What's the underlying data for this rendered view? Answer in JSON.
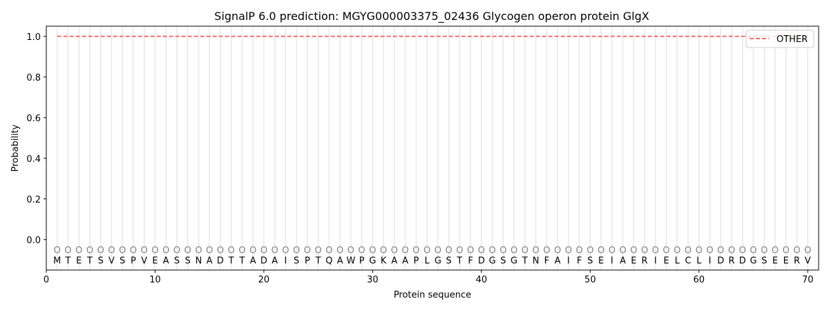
{
  "chart_data": {
    "type": "line",
    "title": "SignalP 6.0 prediction: MGYG000003375_02436 Glycogen operon protein GlgX",
    "xlabel": "Protein sequence",
    "ylabel": "Probability",
    "xlim": [
      0,
      71
    ],
    "ylim": [
      -0.15,
      1.05
    ],
    "xticks": [
      0,
      10,
      20,
      30,
      40,
      50,
      60,
      70
    ],
    "yticks": [
      0.0,
      0.2,
      0.4,
      0.6,
      0.8,
      1.0
    ],
    "ytick_labels": [
      "0.0",
      "0.2",
      "0.4",
      "0.6",
      "0.8",
      "1.0"
    ],
    "grid": "vertical lines at each residue",
    "legend_placement": "top-right",
    "series": [
      {
        "name": "OTHER",
        "color": "#f07070",
        "style": "dashed",
        "x_start": 1,
        "x_end": 70,
        "value": 1.0
      }
    ],
    "sequence": "MTETSVSPVEASSNADTTADAISPTQAWPGKAAPLGSTFDGSGTNFAIFSEIAERIELCLIDRDGSEERV",
    "predicted_labels": "OOOOOOOOOOOOOOOOOOOOOOOOOOOOOOOOOOOOOOOOOOOOOOOOOOOOOOOOOOOOOOOOOOOOOO"
  }
}
